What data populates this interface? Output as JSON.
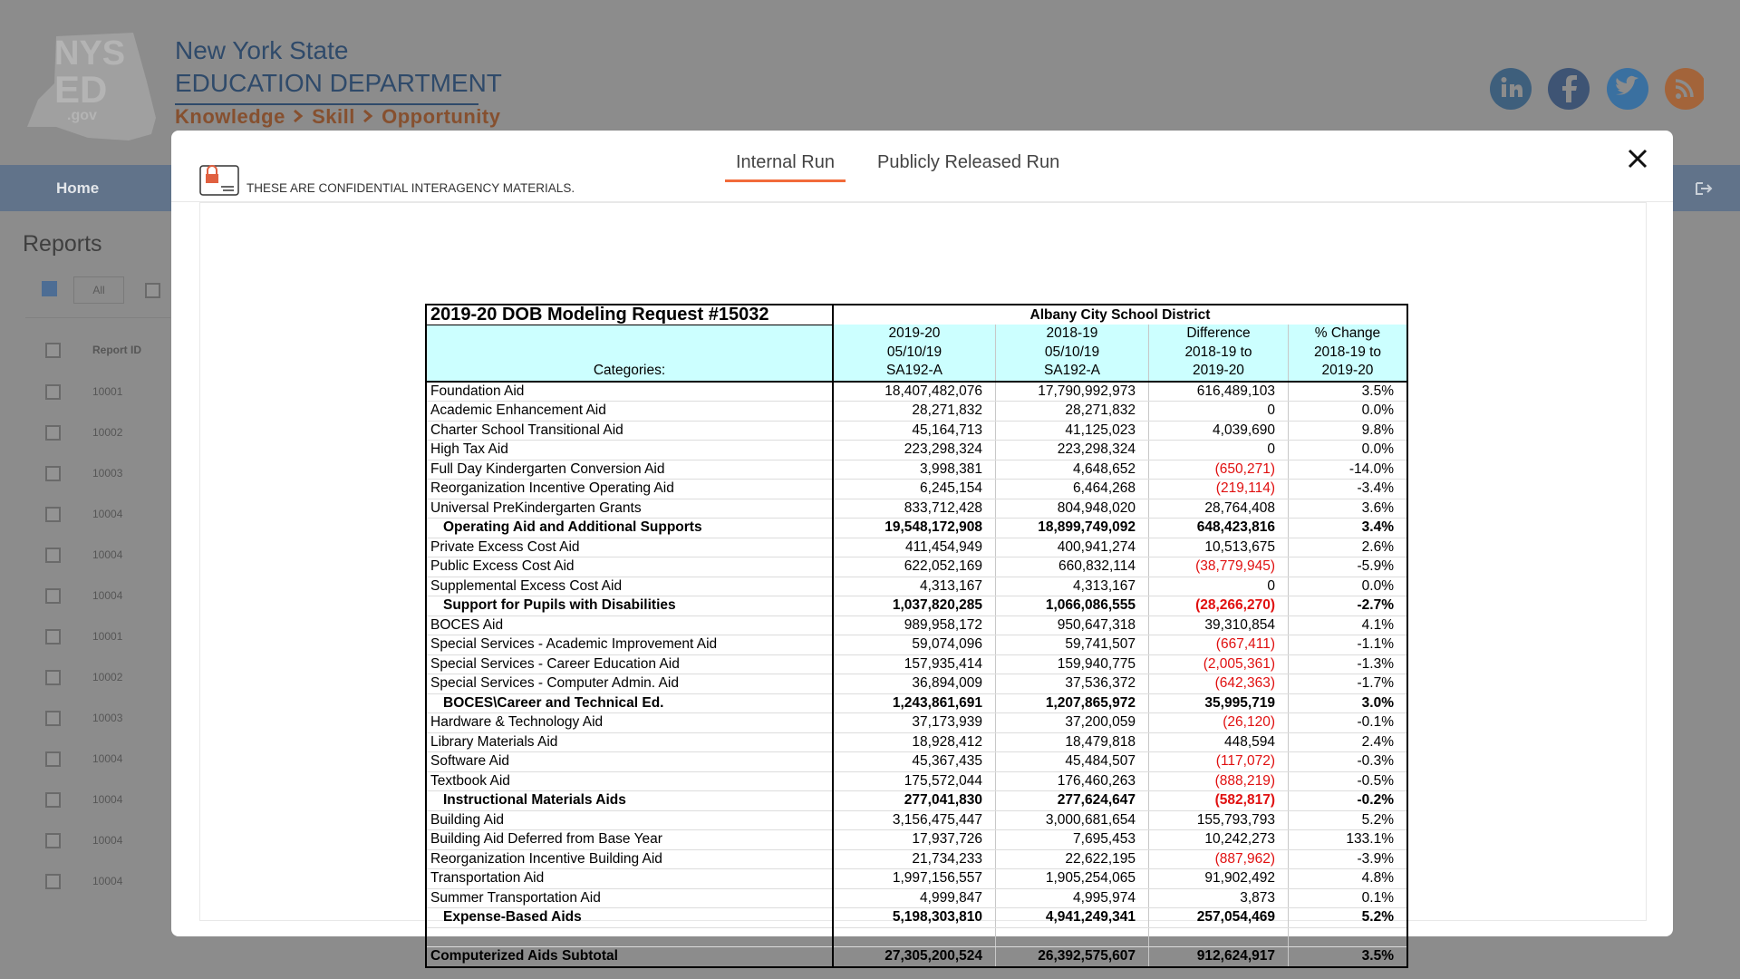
{
  "header": {
    "logo": [
      "NYS",
      "ED",
      ".gov"
    ],
    "org": [
      "New York State",
      "EDUCATION DEPARTMENT"
    ],
    "tagline": [
      "Knowledge",
      "Skill",
      "Opportunity"
    ]
  },
  "nav": {
    "home": "Home"
  },
  "sidebar": {
    "title": "Reports",
    "filter": "All",
    "column": "Report ID",
    "ids": [
      "10001",
      "10002",
      "10003",
      "10004",
      "10004",
      "10004",
      "10001",
      "10002",
      "10003",
      "10004",
      "10004",
      "10004",
      "10004"
    ]
  },
  "modal": {
    "tabs": [
      "Internal Run",
      "Publicly Released Run"
    ],
    "notice": "THESE ARE CONFIDENTIAL INTERAGENCY MATERIALS."
  },
  "table": {
    "title": "2019-20 DOB Modeling Request #15032",
    "district": "Albany City School District",
    "categories_label": "Categories:",
    "columns": [
      [
        "2019-20",
        "05/10/19",
        "SA192-A"
      ],
      [
        "2018-19",
        "05/10/19",
        "SA192-A"
      ],
      [
        "Difference",
        "2018-19 to",
        "2019-20"
      ],
      [
        "% Change",
        "2018-19 to",
        "2019-20"
      ]
    ],
    "sections": [
      {
        "rows": [
          [
            "Foundation Aid",
            "18,407,482,076",
            "17,790,992,973",
            "616,489,103",
            "3.5%"
          ],
          [
            "Academic Enhancement Aid",
            "28,271,832",
            "28,271,832",
            "0",
            "0.0%"
          ],
          [
            "Charter School Transitional Aid",
            "45,164,713",
            "41,125,023",
            "4,039,690",
            "9.8%"
          ],
          [
            "High Tax Aid",
            "223,298,324",
            "223,298,324",
            "0",
            "0.0%"
          ],
          [
            "Full Day Kindergarten Conversion Aid",
            "3,998,381",
            "4,648,652",
            "(650,271)",
            "-14.0%"
          ],
          [
            "Reorganization Incentive Operating Aid",
            "6,245,154",
            "6,464,268",
            "(219,114)",
            "-3.4%"
          ],
          [
            "Universal PreKindergarten Grants",
            "833,712,428",
            "804,948,020",
            "28,764,408",
            "3.6%"
          ]
        ],
        "total": [
          "Operating Aid and Additional Supports",
          "19,548,172,908",
          "18,899,749,092",
          "648,423,816",
          "3.4%"
        ]
      },
      {
        "rows": [
          [
            "Private Excess Cost Aid",
            "411,454,949",
            "400,941,274",
            "10,513,675",
            "2.6%"
          ],
          [
            "Public Excess Cost Aid",
            "622,052,169",
            "660,832,114",
            "(38,779,945)",
            "-5.9%"
          ],
          [
            "Supplemental Excess Cost Aid",
            "4,313,167",
            "4,313,167",
            "0",
            "0.0%"
          ]
        ],
        "total": [
          "Support for Pupils with Disabilities",
          "1,037,820,285",
          "1,066,086,555",
          "(28,266,270)",
          "-2.7%"
        ]
      },
      {
        "rows": [
          [
            "BOCES Aid",
            "989,958,172",
            "950,647,318",
            "39,310,854",
            "4.1%"
          ],
          [
            "Special Services - Academic Improvement Aid",
            "59,074,096",
            "59,741,507",
            "(667,411)",
            "-1.1%"
          ],
          [
            "Special Services - Career Education Aid",
            "157,935,414",
            "159,940,775",
            "(2,005,361)",
            "-1.3%"
          ],
          [
            "Special Services - Computer Admin. Aid",
            "36,894,009",
            "37,536,372",
            "(642,363)",
            "-1.7%"
          ]
        ],
        "total": [
          "BOCES\\Career and Technical Ed.",
          "1,243,861,691",
          "1,207,865,972",
          "35,995,719",
          "3.0%"
        ]
      },
      {
        "rows": [
          [
            "Hardware & Technology Aid",
            "37,173,939",
            "37,200,059",
            "(26,120)",
            "-0.1%"
          ],
          [
            "Library Materials Aid",
            "18,928,412",
            "18,479,818",
            "448,594",
            "2.4%"
          ],
          [
            "Software Aid",
            "45,367,435",
            "45,484,507",
            "(117,072)",
            "-0.3%"
          ],
          [
            "Textbook Aid",
            "175,572,044",
            "176,460,263",
            "(888,219)",
            "-0.5%"
          ]
        ],
        "total": [
          "Instructional Materials Aids",
          "277,041,830",
          "277,624,647",
          "(582,817)",
          "-0.2%"
        ]
      },
      {
        "rows": [
          [
            "Building Aid",
            "3,156,475,447",
            "3,000,681,654",
            "155,793,793",
            "5.2%"
          ],
          [
            "Building Aid Deferred from Base Year",
            "17,937,726",
            "7,695,453",
            "10,242,273",
            "133.1%"
          ],
          [
            "Reorganization Incentive Building Aid",
            "21,734,233",
            "22,622,195",
            "(887,962)",
            "-3.9%"
          ],
          [
            "Transportation Aid",
            "1,997,156,557",
            "1,905,254,065",
            "91,902,492",
            "4.8%"
          ],
          [
            "Summer Transportation Aid",
            "4,999,847",
            "4,995,974",
            "3,873",
            "0.1%"
          ]
        ],
        "total": [
          "Expense-Based Aids",
          "5,198,303,810",
          "4,941,249,341",
          "257,054,469",
          "5.2%"
        ]
      }
    ],
    "grand_total": [
      "Computerized Aids Subtotal",
      "27,305,200,524",
      "26,392,575,607",
      "912,624,917",
      "3.5%"
    ]
  }
}
